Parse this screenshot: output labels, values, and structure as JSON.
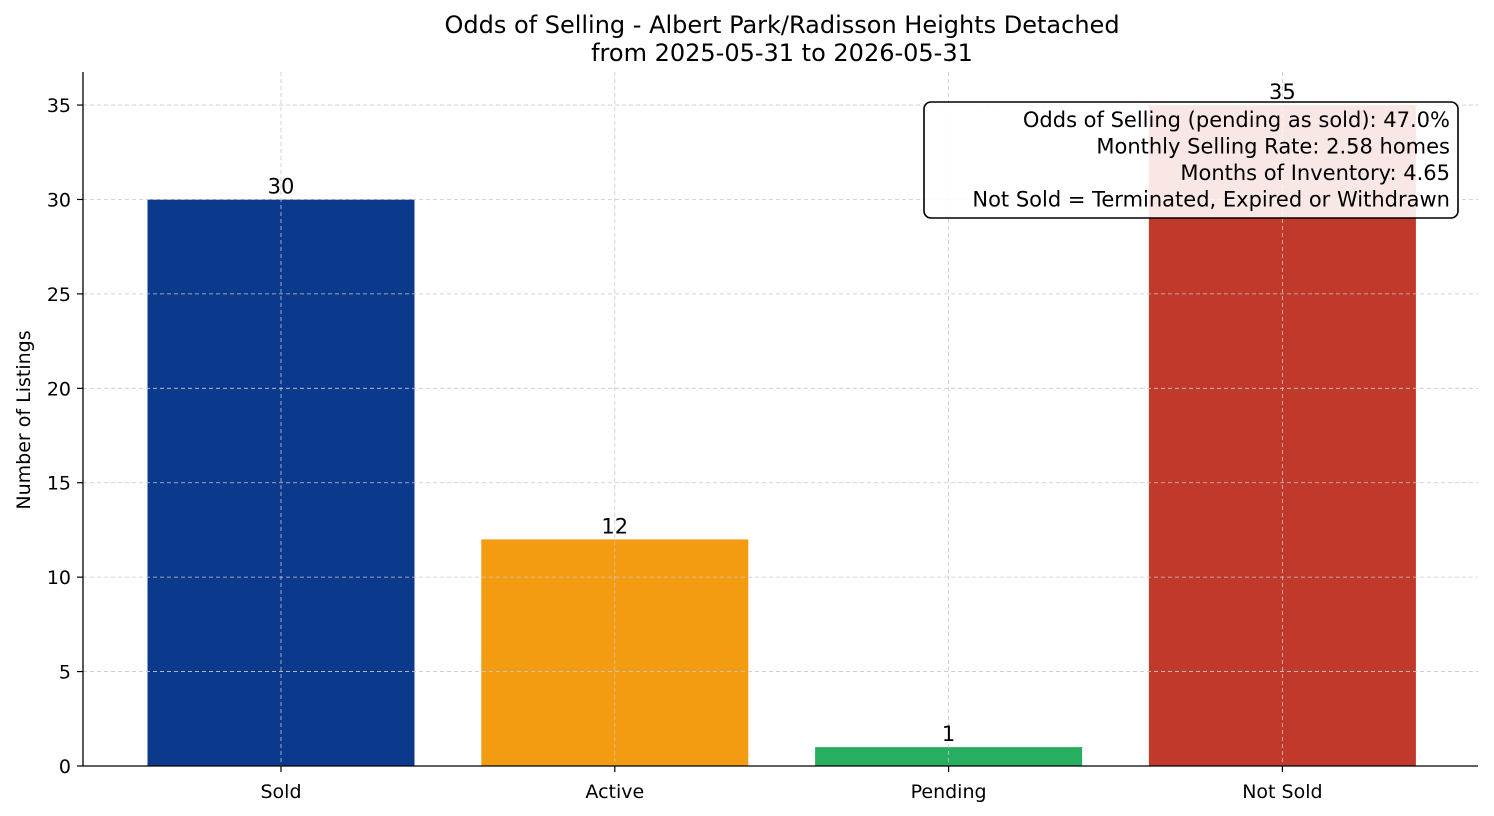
{
  "chart_data": {
    "type": "bar",
    "title": "Odds of Selling - Albert Park/Radisson Heights Detached",
    "subtitle": "from 2025-05-31 to 2026-05-31",
    "xlabel": "",
    "ylabel": "Number of Listings",
    "categories": [
      "Sold",
      "Active",
      "Pending",
      "Not Sold"
    ],
    "values": [
      30,
      12,
      1,
      35
    ],
    "value_labels": [
      "30",
      "12",
      "1",
      "35"
    ],
    "colors": [
      "#0b3a8c",
      "#f39c12",
      "#27ae60",
      "#c0392b"
    ],
    "ylim": [
      0,
      36.75
    ],
    "yticks": [
      0,
      5,
      10,
      15,
      20,
      25,
      30,
      35
    ],
    "ytick_labels": [
      "0",
      "5",
      "10",
      "15",
      "20",
      "25",
      "30",
      "35"
    ],
    "grid": true,
    "annotation": {
      "placement": "top-right",
      "lines": [
        "Odds of Selling (pending as sold): 47.0%",
        "Monthly Selling Rate: 2.58 homes",
        "Months of Inventory: 4.65",
        "Not Sold = Terminated, Expired or Withdrawn"
      ]
    }
  }
}
